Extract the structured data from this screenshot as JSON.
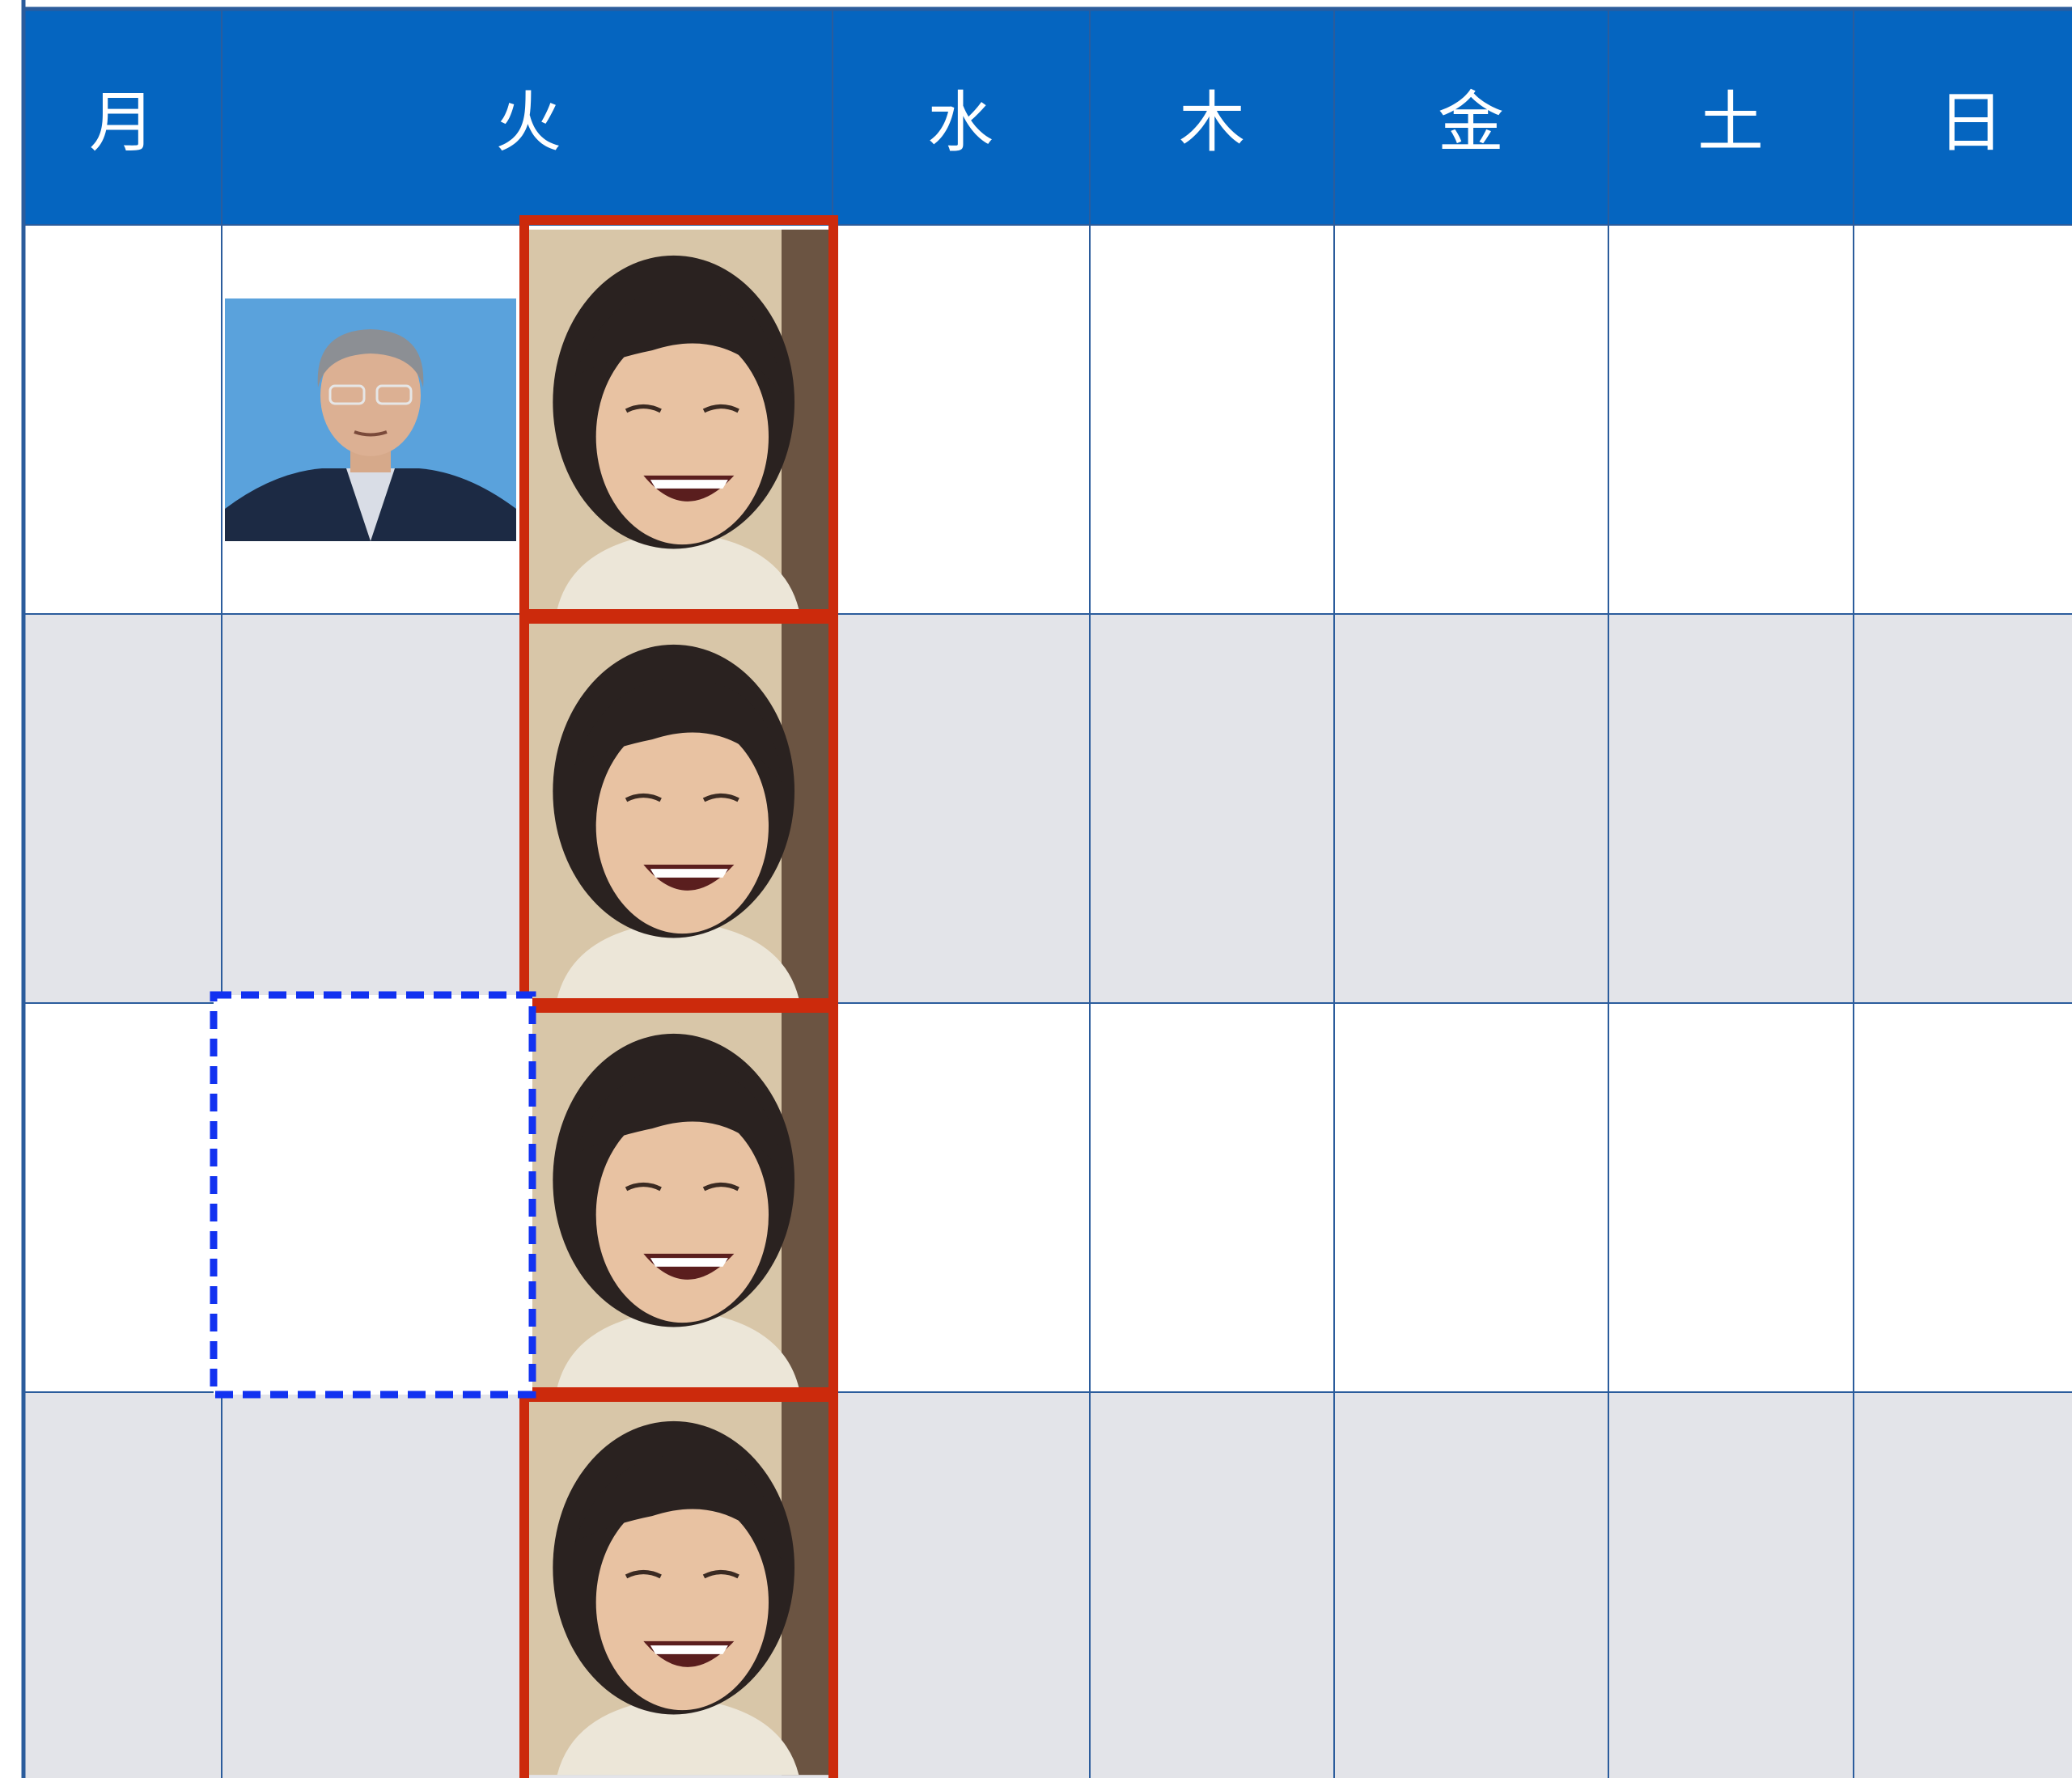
{
  "header": {
    "days": [
      "月",
      "火",
      "水",
      "木",
      "金",
      "土",
      "日"
    ]
  }
}
